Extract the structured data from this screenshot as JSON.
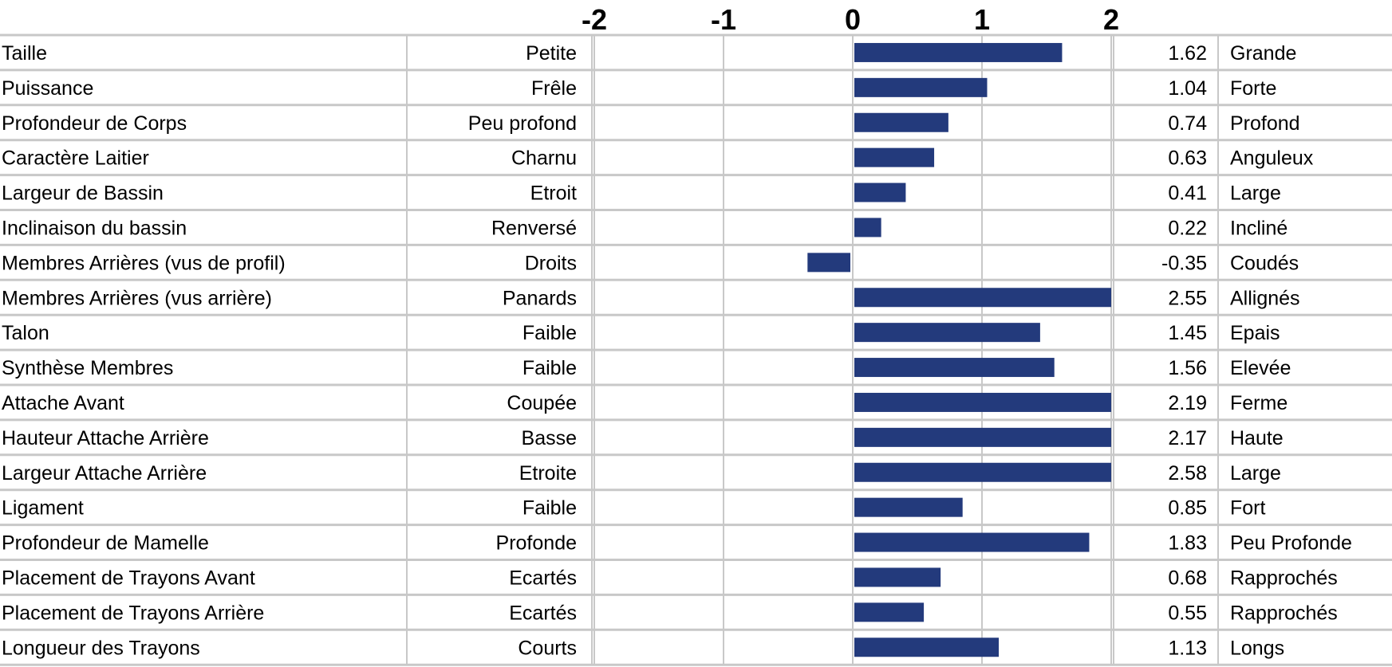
{
  "chart_data": {
    "type": "bar",
    "orientation": "horizontal",
    "title": "",
    "xlabel": "",
    "ylabel": "",
    "xlim": [
      -2,
      2
    ],
    "ticks": [
      -2,
      -1,
      0,
      1,
      2
    ],
    "tick_labels": [
      "-2",
      "-1",
      "0",
      "1",
      "2"
    ],
    "grid": true,
    "bar_color": "#233a7c",
    "grid_color": "#c8c8c8",
    "values_clipped_to_axis": true,
    "rows": [
      {
        "trait": "Taille",
        "low": "Petite",
        "value": 1.62,
        "value_label": "1.62",
        "high": "Grande"
      },
      {
        "trait": "Puissance",
        "low": "Frêle",
        "value": 1.04,
        "value_label": "1.04",
        "high": "Forte"
      },
      {
        "trait": "Profondeur de Corps",
        "low": "Peu profond",
        "value": 0.74,
        "value_label": "0.74",
        "high": "Profond"
      },
      {
        "trait": "Caractère Laitier",
        "low": "Charnu",
        "value": 0.63,
        "value_label": "0.63",
        "high": "Anguleux"
      },
      {
        "trait": "Largeur de Bassin",
        "low": "Etroit",
        "value": 0.41,
        "value_label": "0.41",
        "high": "Large"
      },
      {
        "trait": "Inclinaison du bassin",
        "low": "Renversé",
        "value": 0.22,
        "value_label": "0.22",
        "high": "Incliné"
      },
      {
        "trait": "Membres Arrières (vus de profil)",
        "low": "Droits",
        "value": -0.35,
        "value_label": "-0.35",
        "high": "Coudés"
      },
      {
        "trait": "Membres Arrières (vus arrière)",
        "low": "Panards",
        "value": 2.55,
        "value_label": "2.55",
        "high": "Allignés"
      },
      {
        "trait": "Talon",
        "low": "Faible",
        "value": 1.45,
        "value_label": "1.45",
        "high": "Epais"
      },
      {
        "trait": "Synthèse Membres",
        "low": "Faible",
        "value": 1.56,
        "value_label": "1.56",
        "high": "Elevée"
      },
      {
        "trait": "Attache Avant",
        "low": "Coupée",
        "value": 2.19,
        "value_label": "2.19",
        "high": "Ferme"
      },
      {
        "trait": "Hauteur Attache Arrière",
        "low": "Basse",
        "value": 2.17,
        "value_label": "2.17",
        "high": "Haute"
      },
      {
        "trait": "Largeur Attache Arrière",
        "low": "Etroite",
        "value": 2.58,
        "value_label": "2.58",
        "high": "Large"
      },
      {
        "trait": "Ligament",
        "low": "Faible",
        "value": 0.85,
        "value_label": "0.85",
        "high": "Fort"
      },
      {
        "trait": "Profondeur de Mamelle",
        "low": "Profonde",
        "value": 1.83,
        "value_label": "1.83",
        "high": "Peu Profonde"
      },
      {
        "trait": "Placement de Trayons Avant",
        "low": "Ecartés",
        "value": 0.68,
        "value_label": "0.68",
        "high": "Rapprochés"
      },
      {
        "trait": "Placement de Trayons Arrière",
        "low": "Ecartés",
        "value": 0.55,
        "value_label": "0.55",
        "high": "Rapprochés"
      },
      {
        "trait": "Longueur des Trayons",
        "low": "Courts",
        "value": 1.13,
        "value_label": "1.13",
        "high": "Longs"
      }
    ]
  }
}
